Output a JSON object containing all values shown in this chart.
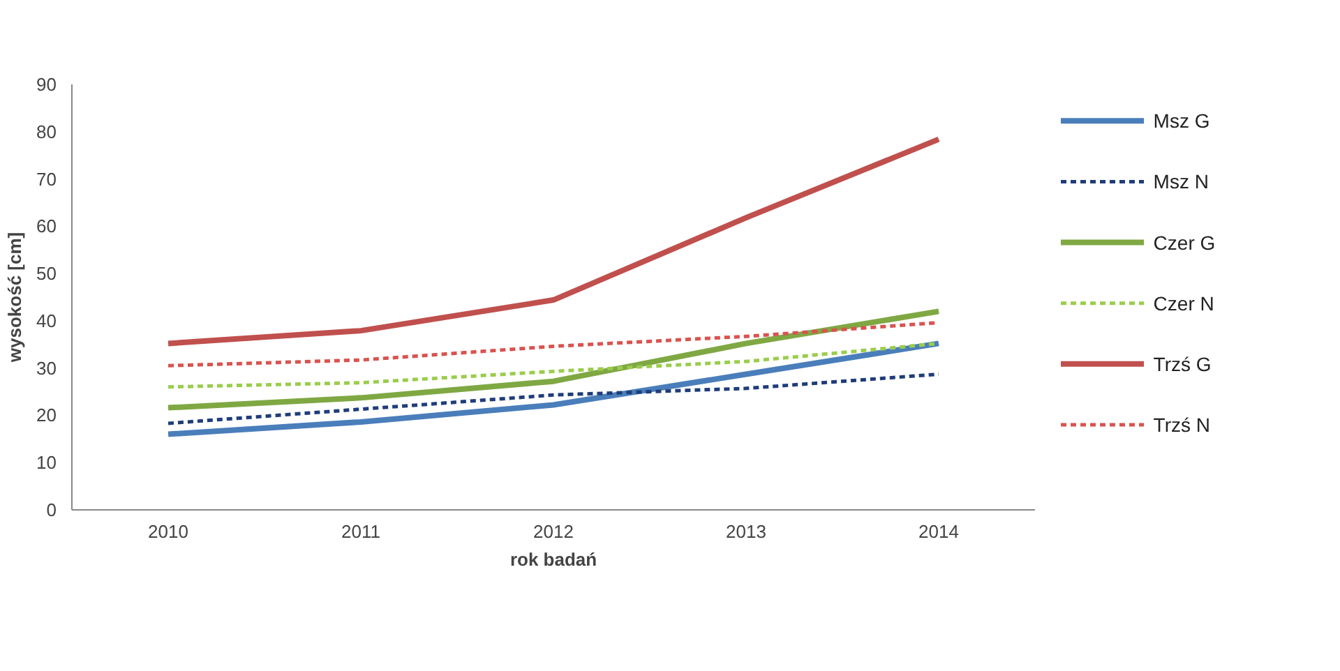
{
  "chart_data": {
    "type": "line",
    "xlabel": "rok badań",
    "ylabel": "wysokość [cm]",
    "categories": [
      "2010",
      "2011",
      "2012",
      "2013",
      "2014"
    ],
    "ylim": [
      0,
      90
    ],
    "yticks": [
      0,
      10,
      20,
      30,
      40,
      50,
      60,
      70,
      80,
      90
    ],
    "grid": false,
    "legend": "right",
    "marker": "none",
    "series": [
      {
        "name": "Msz G",
        "color": "#4a7ebb",
        "line_style": "solid",
        "values": [
          16.0,
          18.6,
          22.2,
          28.7,
          35.2
        ]
      },
      {
        "name": "Msz N",
        "color": "#1f3d7a",
        "line_style": "dashed",
        "values": [
          18.3,
          21.3,
          24.3,
          25.7,
          28.7
        ]
      },
      {
        "name": "Czer G",
        "color": "#7fa843",
        "line_style": "solid",
        "values": [
          21.6,
          23.7,
          27.2,
          35.2,
          42.0
        ]
      },
      {
        "name": "Czer N",
        "color": "#9acd4c",
        "line_style": "dashed",
        "values": [
          26.0,
          26.9,
          29.3,
          31.4,
          35.2
        ]
      },
      {
        "name": "Trzś G",
        "color": "#c0504d",
        "line_style": "solid",
        "values": [
          35.2,
          37.9,
          44.4,
          61.8,
          78.4
        ]
      },
      {
        "name": "Trzś N",
        "color": "#d9534f",
        "line_style": "dashed",
        "values": [
          30.5,
          31.7,
          34.6,
          36.7,
          39.6
        ]
      }
    ]
  }
}
